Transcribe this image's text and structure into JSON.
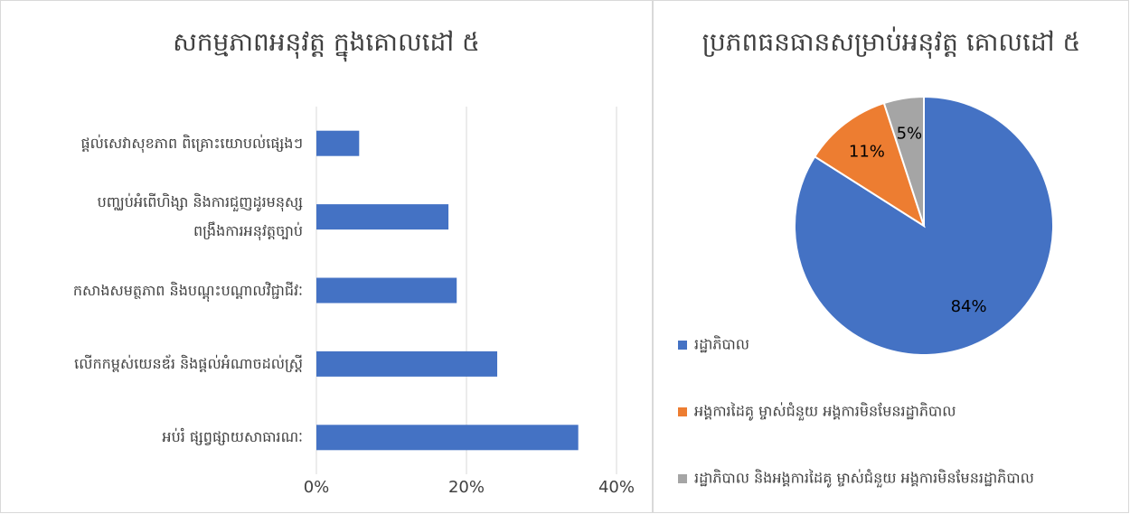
{
  "chart_data": [
    {
      "type": "hbar",
      "title": "សកម្មភាពអនុវត្ត ក្នុងគោលដៅ ៥",
      "categories": [
        "ផ្តល់សេវាសុខភាព ពិគ្រោះយោបល់ផ្សេងៗ",
        "បញ្ឈប់អំពើហិង្សា និងការជួញដូរមនុស្ស\nពង្រឹងការអនុវត្តច្បាប់",
        "កសាងសមត្ថភាព និងបណ្តុះបណ្តាលវិជ្ជាជីវៈ",
        "លើកកម្ពស់យេនឌ័រ និងផ្តល់អំណាចដល់ស្ត្រី",
        "អប់រំ ផ្សព្វផ្សាយសាធារណៈ"
      ],
      "values": [
        5.7,
        17.6,
        18.7,
        24.1,
        34.9
      ],
      "color": "#4472c4",
      "xlim": [
        0,
        40
      ],
      "xticks": [
        {
          "value": 0,
          "label": "0%"
        },
        {
          "value": 20,
          "label": "20%"
        },
        {
          "value": 40,
          "label": "40%"
        }
      ],
      "grid": true
    },
    {
      "type": "pie",
      "title": "ប្រភពធនធានសម្រាប់អនុវត្ត គោលដៅ ៥",
      "categories": [
        "រដ្ឋាភិបាល",
        "អង្គការដៃគូ ម្ចាស់ជំនួយ អង្គការមិនមែនរដ្ឋាភិបាល",
        "រដ្ឋាភិបាល និងអង្គការដៃគូ ម្ចាស់ជំនួយ អង្គការមិនមែនរដ្ឋាភិបាល"
      ],
      "values": [
        84,
        11,
        5
      ],
      "value_labels": [
        "84%",
        "11%",
        "5%"
      ],
      "colors": [
        "#4472c4",
        "#ed7d31",
        "#a5a5a5"
      ],
      "legend": "bottom-left"
    }
  ]
}
